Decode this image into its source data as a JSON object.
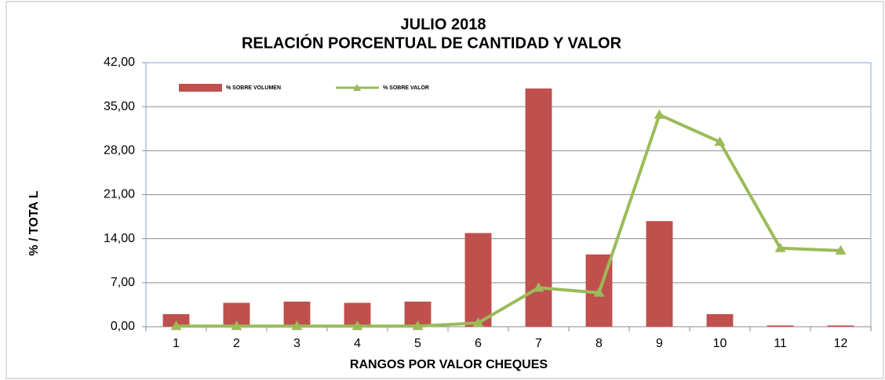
{
  "chart_data": {
    "type": "bar",
    "title": "JULIO  2018",
    "subtitle": "RELACIÓN PORCENTUAL  DE CANTIDAD Y VALOR",
    "x_label": "RANGOS POR VALOR CHEQUES",
    "y_label": "% / TOTA L",
    "categories": [
      "1",
      "2",
      "3",
      "4",
      "5",
      "6",
      "7",
      "8",
      "9",
      "10",
      "11",
      "12"
    ],
    "series": [
      {
        "name": "% SOBRE VOLUMEN",
        "type": "bar",
        "color": "#c0504d",
        "values": [
          2.0,
          3.8,
          4.0,
          3.8,
          4.0,
          14.9,
          37.9,
          11.5,
          16.8,
          2.0,
          0.2,
          0.2
        ]
      },
      {
        "name": "% SOBRE VALOR",
        "type": "line",
        "color": "#9bbb59",
        "values": [
          0.1,
          0.1,
          0.1,
          0.1,
          0.1,
          0.6,
          6.2,
          5.4,
          33.7,
          29.4,
          12.5,
          12.1
        ]
      }
    ],
    "ylim": [
      0,
      42
    ],
    "yticks": [
      {
        "value": 0,
        "label": "0,00"
      },
      {
        "value": 7,
        "label": "7,00"
      },
      {
        "value": 14,
        "label": "14,00"
      },
      {
        "value": 21,
        "label": "21,00"
      },
      {
        "value": 28,
        "label": "28,00"
      },
      {
        "value": 35,
        "label": "35,00"
      },
      {
        "value": 42,
        "label": "42,00"
      }
    ],
    "grid": true,
    "legend": "top-left"
  }
}
